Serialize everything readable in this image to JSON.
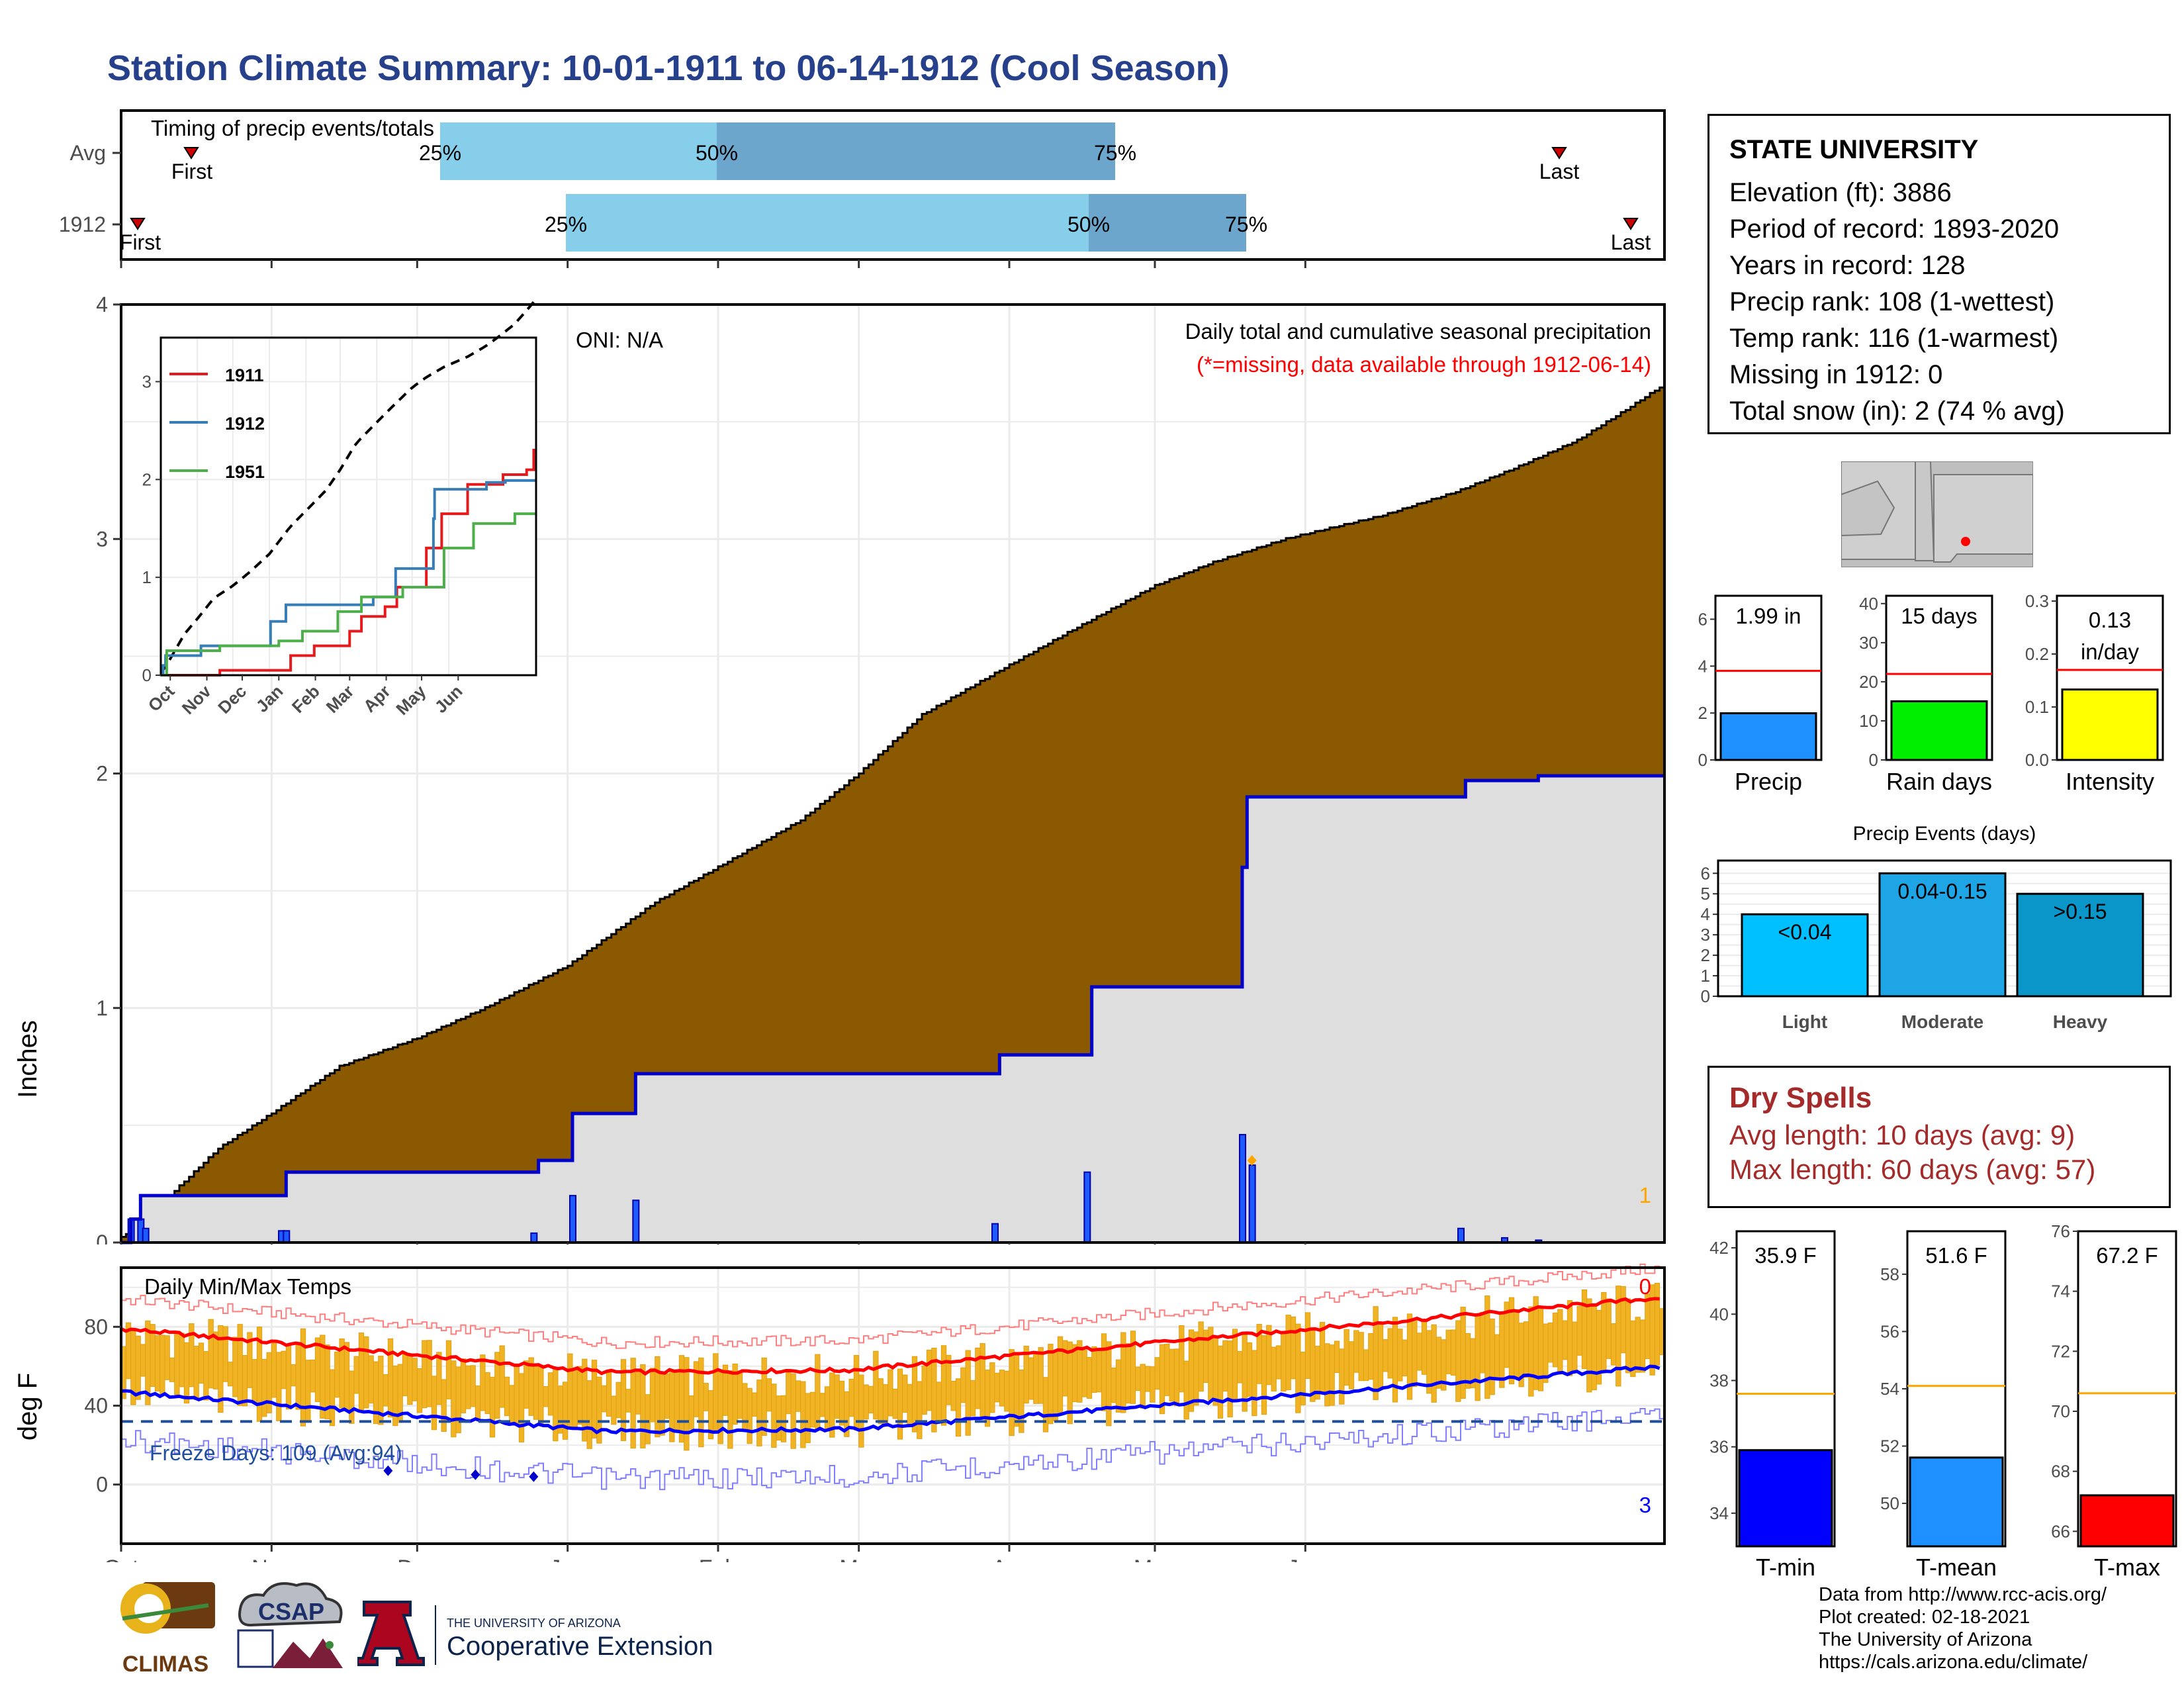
{
  "title": "Station Climate Summary: 10-01-1911 to 06-14-1912 (Cool Season)",
  "timing": {
    "title": "Timing of precip events/totals",
    "rows": [
      {
        "label": "Avg",
        "first": "First",
        "last": "Last",
        "p25": "25%",
        "p50": "50%",
        "p75": "75%"
      },
      {
        "label": "1912",
        "first": "First",
        "last": "Last",
        "p25": "25%",
        "p50": "50%",
        "p75": "75%"
      }
    ]
  },
  "station": {
    "name": "STATE UNIVERSITY",
    "lines": [
      "Elevation (ft): 3886",
      "Period of record: 1893-2020",
      "Years in record: 128",
      "Precip rank: 108 (1-wettest)",
      "Temp rank: 116 (1-warmest)",
      "Missing in 1912: 0",
      "Total snow (in): 2 (74 % avg)"
    ]
  },
  "precip_panel": {
    "ylabel": "Inches",
    "oni": "ONI: N/A",
    "header": "Daily total and cumulative seasonal precipitation",
    "missing_note": "(*=missing, data available through 1912-06-14)",
    "missing_count": "1",
    "yticks": [
      "0",
      "1",
      "2",
      "3",
      "4"
    ]
  },
  "inset": {
    "legend": [
      "1911",
      "1912",
      "1951"
    ],
    "xticks": [
      "Oct",
      "Nov",
      "Dec",
      "Jan",
      "Feb",
      "Mar",
      "Apr",
      "May",
      "Jun"
    ],
    "yticks": [
      "0",
      "1",
      "2",
      "3"
    ]
  },
  "temp_panel": {
    "ylabel": "deg F",
    "title": "Daily Min/Max Temps",
    "freeze": "Freeze Days: 109 (Avg:94)",
    "count_top": "0",
    "count_bottom": "3",
    "yticks": [
      "0",
      "40",
      "80"
    ],
    "xticks": [
      "Oct",
      "Nov",
      "Dec",
      "Jan",
      "Feb",
      "Mar",
      "Apr",
      "May",
      "Jun"
    ]
  },
  "minibars": [
    {
      "label": "Precip",
      "value_text": "1.99 in",
      "value": 1.99,
      "avg": 3.8,
      "ymax": 7,
      "ticks": [
        "0",
        "2",
        "4",
        "6"
      ],
      "color": "#1e90ff"
    },
    {
      "label": "Rain days",
      "value_text": "15 days",
      "value": 15,
      "avg": 22,
      "ymax": 42,
      "ticks": [
        "0",
        "10",
        "20",
        "30",
        "40"
      ],
      "color": "#00ee00"
    },
    {
      "label": "Intensity",
      "value_text_1": "0.13",
      "value_text_2": "in/day",
      "value": 0.133,
      "avg": 0.17,
      "ymax": 0.31,
      "ticks": [
        "0.0",
        "0.1",
        "0.2",
        "0.3"
      ],
      "color": "#ffff00"
    }
  ],
  "events": {
    "title": "Precip Events (days)",
    "ticks": [
      "0",
      "1",
      "2",
      "3",
      "4",
      "5",
      "6"
    ],
    "bars": [
      {
        "label": "Light",
        "range": "<0.04",
        "value": 4,
        "color": "#00bfff"
      },
      {
        "label": "Moderate",
        "range": "0.04-0.15",
        "value": 6,
        "color": "#1ea5e6"
      },
      {
        "label": "Heavy",
        "range": ">0.15",
        "value": 5,
        "color": "#0a96c8"
      }
    ]
  },
  "dry_spells": {
    "title": "Dry Spells",
    "avg_length": "Avg length: 10 days (avg: 9)",
    "max_length": "Max length: 60 days (avg: 57)"
  },
  "tempbars": [
    {
      "label": "T-min",
      "value_text": "35.9 F",
      "value": 35.9,
      "avg": 37.6,
      "ymin": 33,
      "ymax": 42.5,
      "ticks": [
        "34",
        "36",
        "38",
        "40",
        "42"
      ],
      "color": "#0000ff"
    },
    {
      "label": "T-mean",
      "value_text": "51.6 F",
      "value": 51.6,
      "avg": 54.1,
      "ymin": 48.5,
      "ymax": 59.5,
      "ticks": [
        "50",
        "52",
        "54",
        "56",
        "58"
      ],
      "color": "#1e90ff"
    },
    {
      "label": "T-max",
      "value_text": "67.2 F",
      "value": 67.2,
      "avg": 70.6,
      "ymin": 65.5,
      "ymax": 76,
      "ticks": [
        "66",
        "68",
        "70",
        "72",
        "74",
        "76"
      ],
      "color": "#ff0000"
    }
  ],
  "credits": [
    "Data from http://www.rcc-acis.org/",
    "Plot created: 02-18-2021",
    "The University of Arizona",
    "https://cals.arizona.edu/climate/"
  ],
  "logos": {
    "climas": "CLIMAS",
    "csap": "CSAP",
    "ua_small": "THE UNIVERSITY OF ARIZONA",
    "ua_big": "Cooperative Extension"
  },
  "chart_data": {
    "type": "area",
    "title": "Daily total and cumulative seasonal precipitation",
    "ylabel": "Inches",
    "ylim": [
      0,
      4
    ],
    "x_months": [
      "Oct",
      "Nov",
      "Dec",
      "Jan",
      "Feb",
      "Mar",
      "Apr",
      "May",
      "Jun"
    ],
    "series": [
      {
        "name": "Average cumulative precipitation (brown area)",
        "points": [
          [
            0,
            0.02
          ],
          [
            5,
            0.1
          ],
          [
            10,
            0.2
          ],
          [
            20,
            0.4
          ],
          [
            31,
            0.55
          ],
          [
            45,
            0.75
          ],
          [
            61,
            0.87
          ],
          [
            75,
            1.0
          ],
          [
            92,
            1.18
          ],
          [
            110,
            1.45
          ],
          [
            123,
            1.6
          ],
          [
            140,
            1.8
          ],
          [
            152,
            2.0
          ],
          [
            165,
            2.25
          ],
          [
            182,
            2.45
          ],
          [
            195,
            2.6
          ],
          [
            213,
            2.8
          ],
          [
            225,
            2.9
          ],
          [
            240,
            3.0
          ],
          [
            260,
            3.1
          ],
          [
            275,
            3.2
          ],
          [
            287,
            3.3
          ],
          [
            300,
            3.42
          ],
          [
            310,
            3.55
          ],
          [
            318,
            3.66
          ]
        ]
      },
      {
        "name": "1912 cumulative precipitation (blue line)",
        "points": [
          [
            0,
            0
          ],
          [
            2,
            0.1
          ],
          [
            4,
            0.2
          ],
          [
            33,
            0.2
          ],
          [
            34,
            0.3
          ],
          [
            85,
            0.3
          ],
          [
            86,
            0.35
          ],
          [
            92,
            0.35
          ],
          [
            93,
            0.55
          ],
          [
            105,
            0.55
          ],
          [
            106,
            0.72
          ],
          [
            180,
            0.72
          ],
          [
            181,
            0.8
          ],
          [
            199,
            0.8
          ],
          [
            200,
            1.09
          ],
          [
            220,
            1.09
          ],
          [
            221,
            1.09
          ],
          [
            230,
            1.09
          ],
          [
            231,
            1.6
          ],
          [
            232,
            1.9
          ],
          [
            276,
            1.9
          ],
          [
            277,
            1.97
          ],
          [
            291,
            1.97
          ],
          [
            292,
            1.99
          ],
          [
            318,
            1.99
          ]
        ]
      }
    ]
  }
}
